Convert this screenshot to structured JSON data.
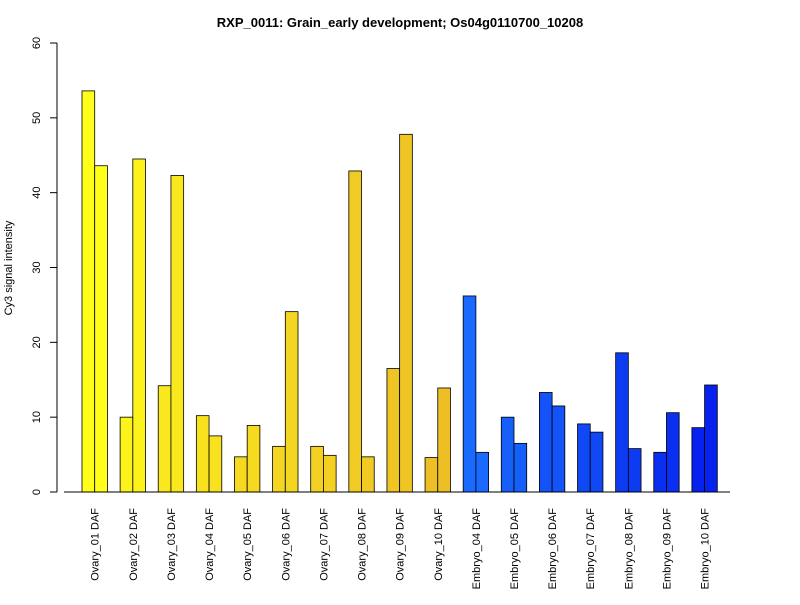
{
  "chart_data": {
    "type": "bar",
    "title": "RXP_0011: Grain_early development; Os04g0110700_10208",
    "xlabel": "",
    "ylabel": "Cy3 signal intensity",
    "ylim": [
      0,
      60
    ],
    "yticks": [
      0,
      10,
      20,
      30,
      40,
      50,
      60
    ],
    "grid": false,
    "legend": "none",
    "categories": [
      {
        "label": "Ovary_01 DAF",
        "values": [
          53.6,
          43.6
        ],
        "color": "#ffff1a"
      },
      {
        "label": "Ovary_02 DAF",
        "values": [
          10.0,
          44.5
        ],
        "color": "#fcf21c"
      },
      {
        "label": "Ovary_03 DAF",
        "values": [
          14.2,
          42.3
        ],
        "color": "#fae81e"
      },
      {
        "label": "Ovary_04 DAF",
        "values": [
          10.2,
          7.5
        ],
        "color": "#f8e11f"
      },
      {
        "label": "Ovary_05 DAF",
        "values": [
          4.7,
          8.9
        ],
        "color": "#f6da20"
      },
      {
        "label": "Ovary_06 DAF",
        "values": [
          6.1,
          24.1
        ],
        "color": "#f4d521"
      },
      {
        "label": "Ovary_07 DAF",
        "values": [
          6.1,
          4.9
        ],
        "color": "#f3d022"
      },
      {
        "label": "Ovary_08 DAF",
        "values": [
          42.9,
          4.7
        ],
        "color": "#f1ca23"
      },
      {
        "label": "Ovary_09 DAF",
        "values": [
          16.5,
          47.8
        ],
        "color": "#efc524"
      },
      {
        "label": "Ovary_10 DAF",
        "values": [
          4.6,
          13.9
        ],
        "color": "#edbf25"
      },
      {
        "label": "Embryo_04 DAF",
        "values": [
          26.2,
          5.3
        ],
        "color": "#1a6aff"
      },
      {
        "label": "Embryo_05 DAF",
        "values": [
          10.0,
          6.5
        ],
        "color": "#175ffb"
      },
      {
        "label": "Embryo_06 DAF",
        "values": [
          13.3,
          11.5
        ],
        "color": "#1453f7"
      },
      {
        "label": "Embryo_07 DAF",
        "values": [
          9.1,
          8.0
        ],
        "color": "#1148f5"
      },
      {
        "label": "Embryo_08 DAF",
        "values": [
          18.6,
          5.8
        ],
        "color": "#0d3bf2"
      },
      {
        "label": "Embryo_09 DAF",
        "values": [
          5.3,
          10.6
        ],
        "color": "#0a2ff0"
      },
      {
        "label": "Embryo_10 DAF",
        "values": [
          8.6,
          14.3
        ],
        "color": "#0722ee"
      }
    ]
  }
}
